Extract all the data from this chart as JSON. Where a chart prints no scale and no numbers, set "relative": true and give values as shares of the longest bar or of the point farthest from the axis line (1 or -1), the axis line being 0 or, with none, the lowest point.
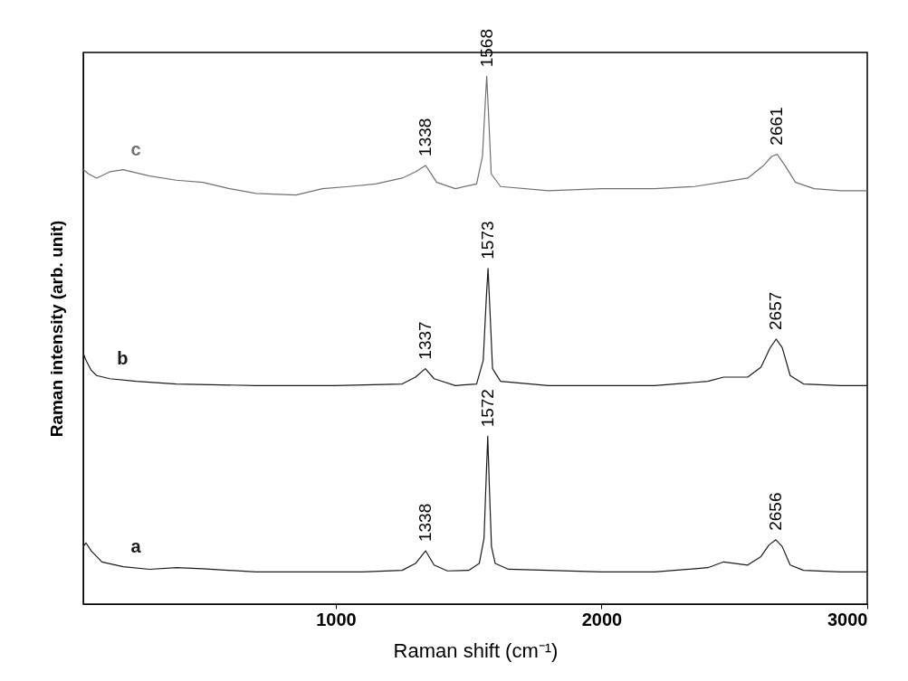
{
  "chart_data": {
    "type": "line",
    "xlabel": "Raman shift (cm⁻¹)",
    "ylabel": "Raman intensity (arb. unit)",
    "relative": true,
    "xlim": [
      50,
      3000
    ],
    "xticks": [
      1000,
      2000,
      3000
    ],
    "grid": false,
    "marker": "none",
    "line_style": "solid",
    "series": [
      {
        "name": "a",
        "color": "#1a1a1a",
        "x": [
          50,
          60,
          80,
          120,
          200,
          300,
          400,
          500,
          700,
          900,
          1100,
          1250,
          1300,
          1338,
          1370,
          1420,
          1500,
          1540,
          1558,
          1566,
          1572,
          1578,
          1586,
          1600,
          1650,
          1800,
          2000,
          2200,
          2400,
          2460,
          2550,
          2600,
          2630,
          2656,
          2680,
          2710,
          2760,
          2900,
          3000
        ],
        "values": [
          0.109,
          0.116,
          0.101,
          0.08,
          0.071,
          0.066,
          0.069,
          0.067,
          0.061,
          0.061,
          0.061,
          0.064,
          0.077,
          0.101,
          0.074,
          0.063,
          0.064,
          0.077,
          0.125,
          0.238,
          0.318,
          0.222,
          0.109,
          0.077,
          0.066,
          0.064,
          0.061,
          0.061,
          0.069,
          0.08,
          0.074,
          0.09,
          0.112,
          0.122,
          0.109,
          0.074,
          0.064,
          0.061,
          0.061
        ]
      },
      {
        "name": "b",
        "color": "#1a1a1a",
        "x": [
          50,
          60,
          80,
          100,
          150,
          250,
          400,
          700,
          1000,
          1250,
          1300,
          1337,
          1370,
          1450,
          1530,
          1555,
          1566,
          1573,
          1580,
          1590,
          1620,
          1800,
          2000,
          2200,
          2400,
          2460,
          2550,
          2600,
          2635,
          2657,
          2680,
          2710,
          2760,
          2900,
          3000
        ],
        "values": [
          0.475,
          0.462,
          0.443,
          0.433,
          0.427,
          0.422,
          0.417,
          0.414,
          0.414,
          0.417,
          0.43,
          0.446,
          0.427,
          0.414,
          0.417,
          0.462,
          0.575,
          0.636,
          0.559,
          0.446,
          0.422,
          0.414,
          0.414,
          0.414,
          0.422,
          0.43,
          0.43,
          0.449,
          0.486,
          0.502,
          0.486,
          0.433,
          0.417,
          0.414,
          0.414
        ]
      },
      {
        "name": "c",
        "color": "#707070",
        "x": [
          50,
          70,
          100,
          150,
          200,
          300,
          400,
          500,
          600,
          700,
          850,
          950,
          1050,
          1150,
          1250,
          1300,
          1338,
          1380,
          1450,
          1530,
          1552,
          1562,
          1568,
          1575,
          1585,
          1620,
          1800,
          2000,
          2200,
          2350,
          2450,
          2550,
          2610,
          2640,
          2661,
          2690,
          2730,
          2800,
          2900,
          3000
        ],
        "values": [
          0.823,
          0.815,
          0.807,
          0.819,
          0.823,
          0.811,
          0.803,
          0.799,
          0.787,
          0.778,
          0.775,
          0.787,
          0.791,
          0.796,
          0.807,
          0.819,
          0.831,
          0.799,
          0.787,
          0.796,
          0.848,
          0.944,
          1,
          0.928,
          0.815,
          0.791,
          0.783,
          0.787,
          0.787,
          0.791,
          0.799,
          0.807,
          0.831,
          0.848,
          0.852,
          0.831,
          0.799,
          0.787,
          0.783,
          0.783
        ]
      }
    ],
    "annotations": [
      {
        "text": "1338",
        "x": 1338,
        "y": 0.101
      },
      {
        "text": "1572",
        "x": 1572,
        "y": 0.318
      },
      {
        "text": "2656",
        "x": 2656,
        "y": 0.122
      },
      {
        "text": "1337",
        "x": 1337,
        "y": 0.446
      },
      {
        "text": "1573",
        "x": 1573,
        "y": 0.636
      },
      {
        "text": "2657",
        "x": 2657,
        "y": 0.502
      },
      {
        "text": "1338",
        "x": 1338,
        "y": 0.831
      },
      {
        "text": "1568",
        "x": 1568,
        "y": 1
      },
      {
        "text": "2661",
        "x": 2661,
        "y": 0.852
      }
    ]
  }
}
